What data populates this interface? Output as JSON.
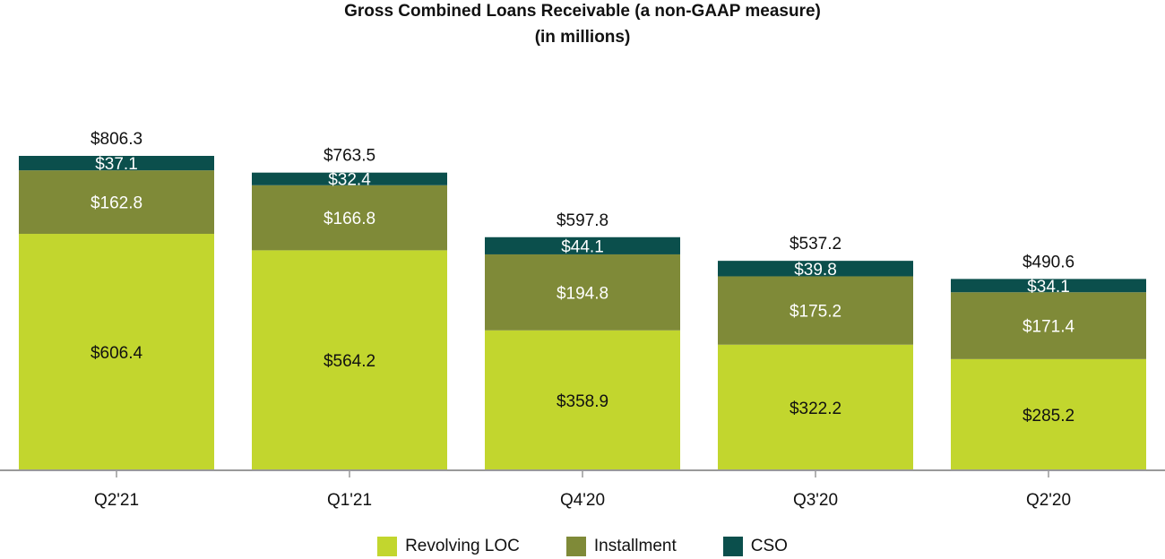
{
  "chart_data": {
    "type": "bar",
    "stacked": true,
    "title": "Gross Combined Loans Receivable (a non-GAAP measure)",
    "subtitle": "(in millions)",
    "xlabel": "",
    "ylabel": "",
    "ylim": [
      0,
      806.3
    ],
    "grid": false,
    "legend_position": "bottom",
    "categories": [
      "Q2'21",
      "Q1'21",
      "Q4'20",
      "Q3'20",
      "Q2'20"
    ],
    "series": [
      {
        "name": "Revolving LOC",
        "color": "#c2d62e",
        "values": [
          606.4,
          564.2,
          358.9,
          322.2,
          285.2
        ],
        "labels": [
          "$606.4",
          "$564.2",
          "$358.9",
          "$322.2",
          "$285.2"
        ],
        "label_color": "#111111"
      },
      {
        "name": "Installment",
        "color": "#7f8a38",
        "values": [
          162.8,
          166.8,
          194.8,
          175.2,
          171.4
        ],
        "labels": [
          "$162.8",
          "$166.8",
          "$194.8",
          "$175.2",
          "$171.4"
        ],
        "label_color": "#ffffff"
      },
      {
        "name": "CSO",
        "color": "#0b4f4c",
        "values": [
          37.1,
          32.4,
          44.1,
          39.8,
          34.1
        ],
        "labels": [
          "$37.1",
          "$32.4",
          "$44.1",
          "$39.8",
          "$34.1"
        ],
        "label_color": "#ffffff"
      }
    ],
    "totals": [
      806.3,
      763.5,
      597.8,
      537.2,
      490.6
    ],
    "total_labels": [
      "$806.3",
      "$763.5",
      "$597.8",
      "$537.2",
      "$490.6"
    ],
    "axis_color": "#999999"
  }
}
